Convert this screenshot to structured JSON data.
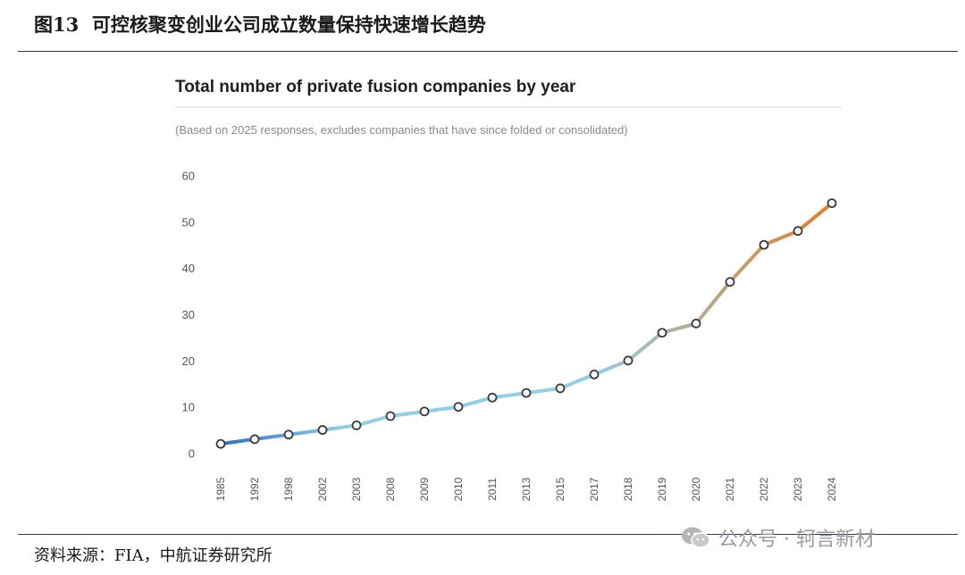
{
  "figure": {
    "label": "图13",
    "title": "可控核聚变创业公司成立数量保持快速增长趋势",
    "source": "资料来源：FIA，中航证券研究所",
    "watermark": "公众号 · 轲言新材"
  },
  "colors": {
    "rule": "#2c3e6b",
    "line_start": "#2f6fc6",
    "line_mid": "#8fd0e6",
    "line_end": "#e67e22",
    "tick": "#555555"
  },
  "chart_data": {
    "type": "line",
    "title": "Total number of private fusion companies by year",
    "subtitle": "(Based on 2025 responses, excludes companies that have since folded or consolidated)",
    "xlabel": "",
    "ylabel": "",
    "ylim": [
      0,
      60
    ],
    "yticks": [
      "0",
      "10",
      "20",
      "30",
      "40",
      "50",
      "60"
    ],
    "grid": false,
    "categories": [
      "1985",
      "1992",
      "1998",
      "2002",
      "2003",
      "2008",
      "2009",
      "2010",
      "2011",
      "2013",
      "2015",
      "2017",
      "2018",
      "2019",
      "2020",
      "2021",
      "2022",
      "2023",
      "2024"
    ],
    "series": [
      {
        "name": "Total number of private fusion companies",
        "values": [
          2,
          3,
          4,
          5,
          6,
          8,
          9,
          10,
          12,
          13,
          14,
          17,
          20,
          26,
          28,
          37,
          45,
          48,
          54
        ]
      }
    ]
  }
}
